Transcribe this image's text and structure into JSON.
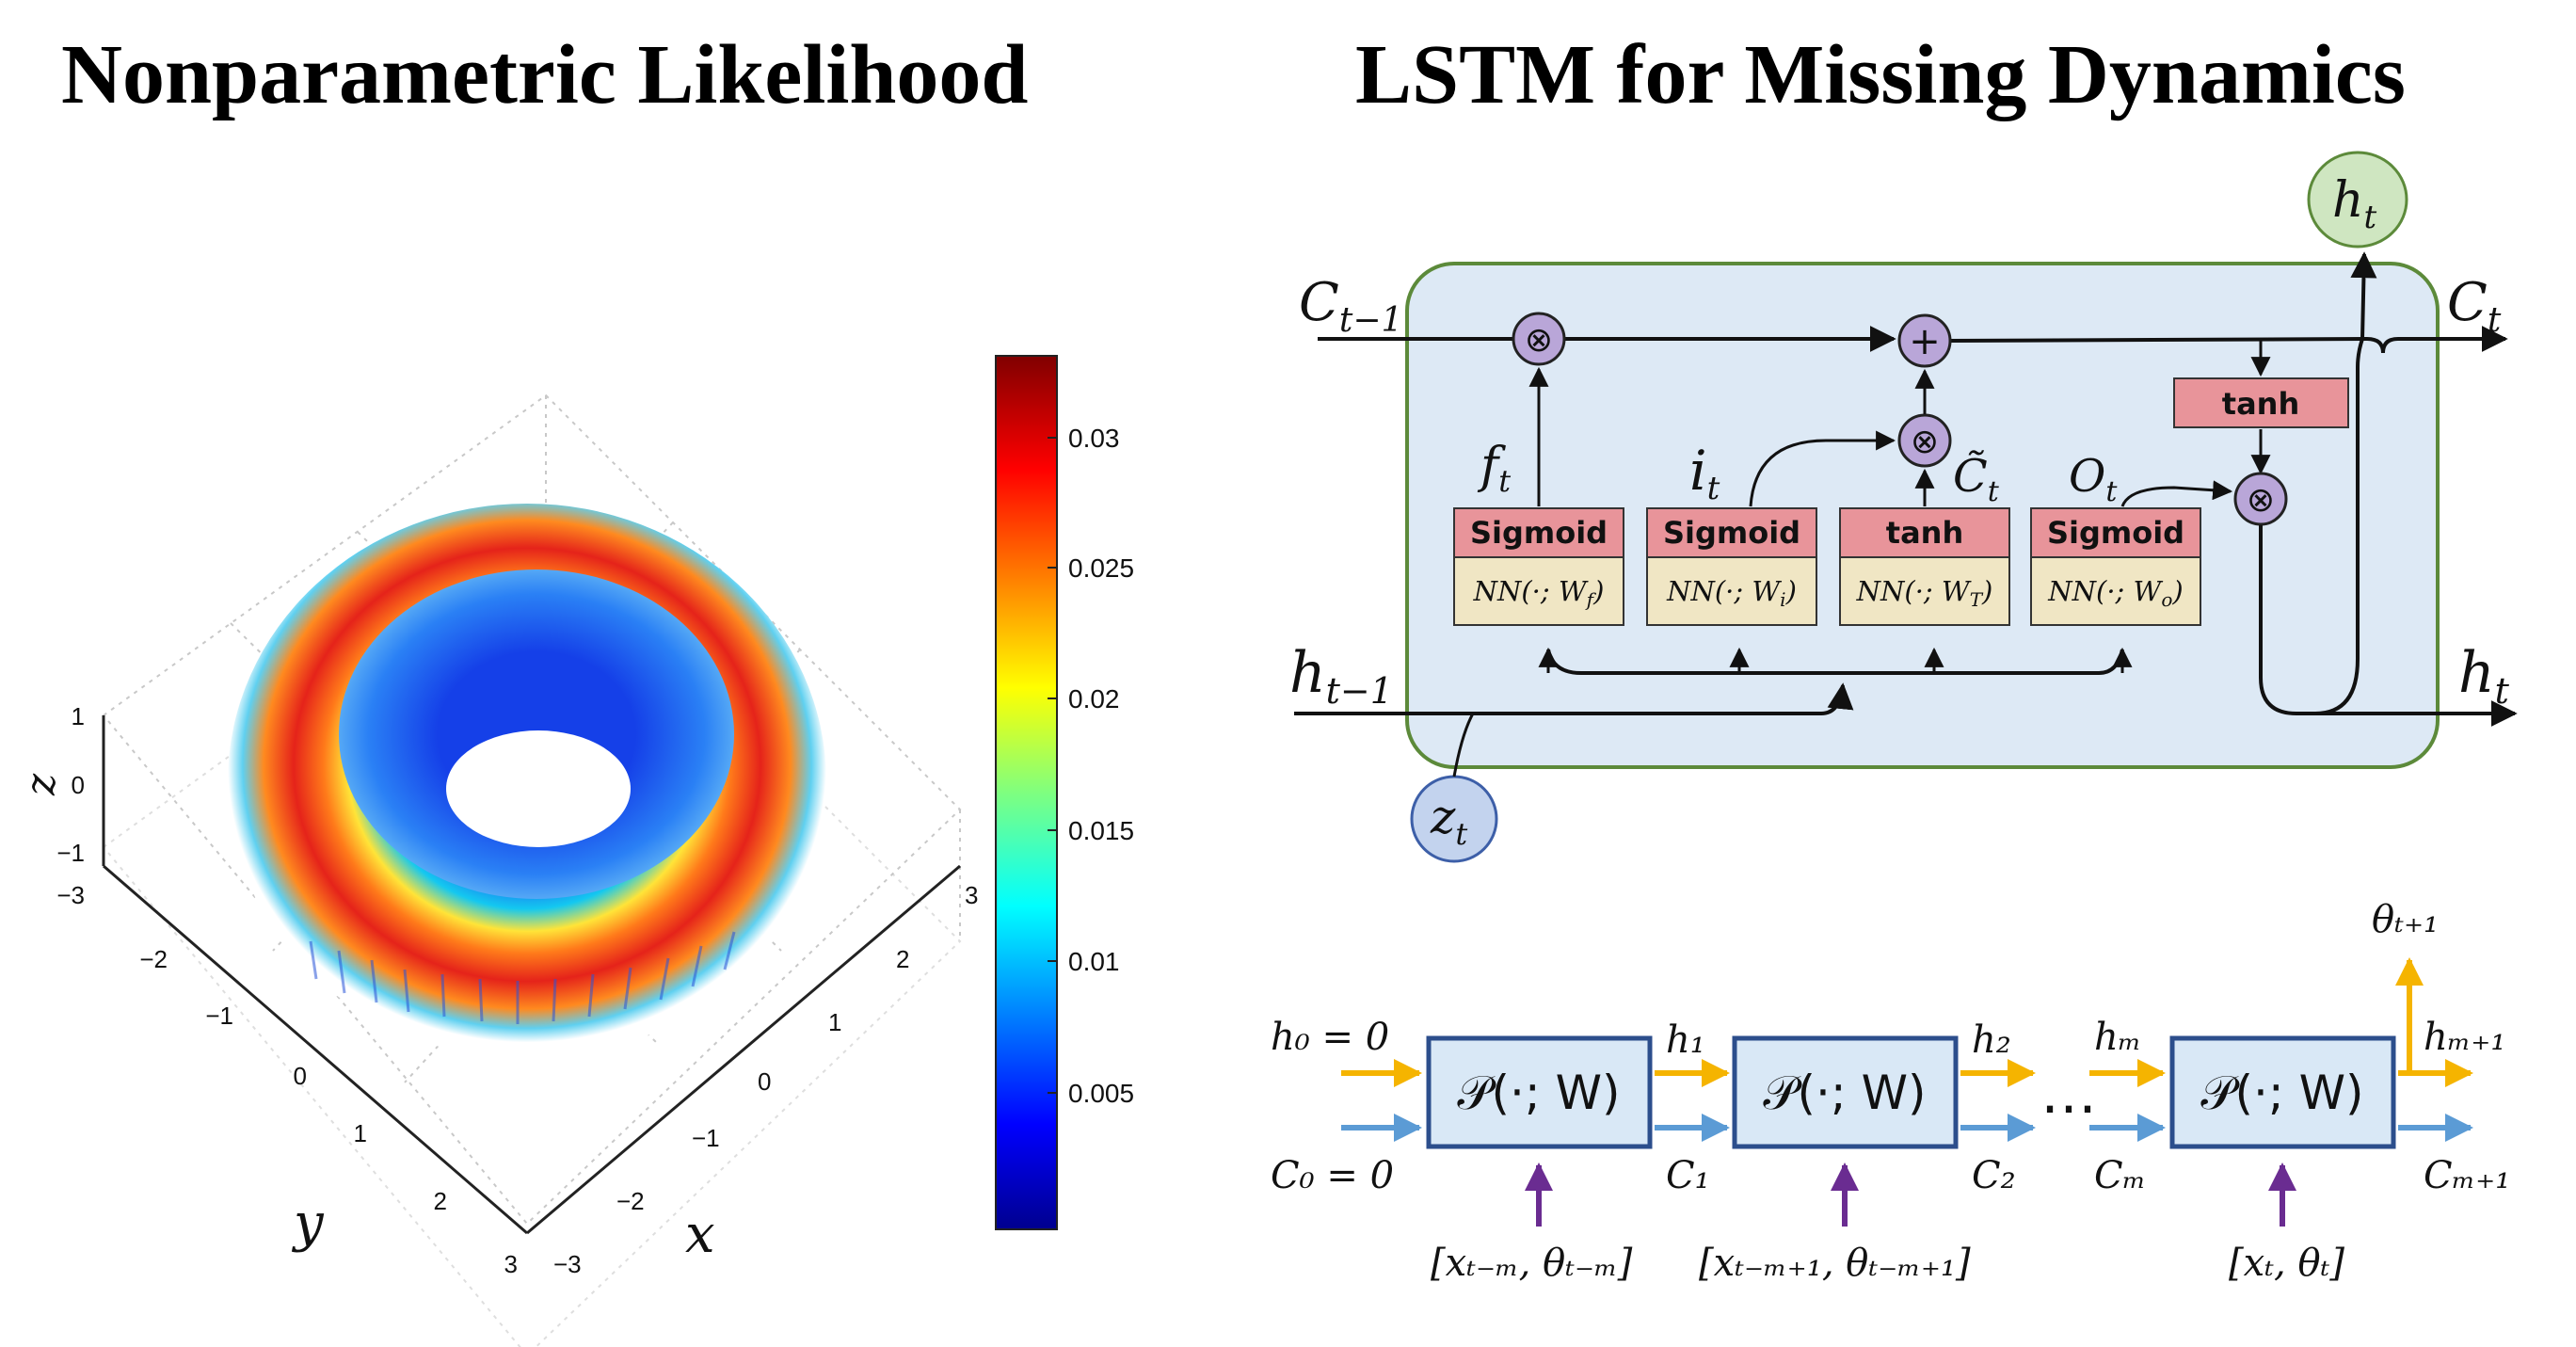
{
  "left_panel": {
    "title": "Nonparametric Likelihood",
    "x_label": "x",
    "y_label": "y",
    "z_label": "z",
    "x_ticks": [
      "−3",
      "−2",
      "−1",
      "0",
      "1",
      "2",
      "3"
    ],
    "y_ticks": [
      "−3",
      "−2",
      "−1",
      "0",
      "1",
      "2",
      "3"
    ],
    "z_ticks": [
      "1",
      "0",
      "−1"
    ],
    "colorbar_ticks": [
      "0.03",
      "0.025",
      "0.02",
      "0.015",
      "0.01",
      "0.005"
    ]
  },
  "right_panel": {
    "title": "LSTM for Missing Dynamics",
    "cell": {
      "c_prev": "C",
      "c_prev_sub": "t−1",
      "h_prev": "h",
      "h_prev_sub": "t−1",
      "c_out": "C",
      "c_out_sub": "t",
      "h_out": "h",
      "h_out_sub": "t",
      "h_top": "h",
      "h_top_sub": "t",
      "z_input": "z",
      "z_input_sub": "t",
      "gate_f": "f",
      "gate_f_sub": "t",
      "gate_i": "i",
      "gate_i_sub": "t",
      "gate_c": "C̃",
      "gate_c_sub": "t",
      "gate_o": "O",
      "gate_o_sub": "t",
      "multiply_symbol": "⊗",
      "plus_symbol": "+",
      "gates": [
        {
          "act": "Sigmoid",
          "nn": "NN(·; W",
          "nn_sub": "f",
          "nn_close": ")"
        },
        {
          "act": "Sigmoid",
          "nn": "NN(·; W",
          "nn_sub": "i",
          "nn_close": ")"
        },
        {
          "act": "tanh",
          "nn": "NN(·; W",
          "nn_sub": "T",
          "nn_close": ")"
        },
        {
          "act": "Sigmoid",
          "nn": "NN(·; W",
          "nn_sub": "o",
          "nn_close": ")"
        }
      ],
      "output_tanh": "tanh"
    },
    "chain": {
      "block_label": "𝒫(·; W)",
      "h0": "h₀ = 0",
      "c0": "C₀ = 0",
      "h1": "h₁",
      "c1": "C₁",
      "h2": "h₂",
      "c2": "C₂",
      "hm": "hₘ",
      "cm": "Cₘ",
      "hm1": "hₘ₊₁",
      "cm1": "Cₘ₊₁",
      "theta_out": "θₜ₊₁",
      "ellipsis": "…",
      "inputs": [
        "[xₜ₋ₘ, θₜ₋ₘ]",
        "[xₜ₋ₘ₊₁, θₜ₋ₘ₊₁]",
        "[xₜ, θₜ]"
      ]
    }
  },
  "colors": {
    "cell_fill": "#dde9f5",
    "cell_border": "#5c8a3a",
    "gate_red": "#e8949a",
    "gate_tan": "#f0e6c4",
    "op_purple": "#b9a6d8",
    "h_top_green": "#cfe6c1",
    "z_blue": "#c3d3ee",
    "chain_block": "#d9e8f6",
    "chain_border": "#2c4e8c",
    "arrow_orange": "#f5b400",
    "arrow_blue": "#5b9bd5",
    "arrow_purple": "#6a2c91"
  }
}
